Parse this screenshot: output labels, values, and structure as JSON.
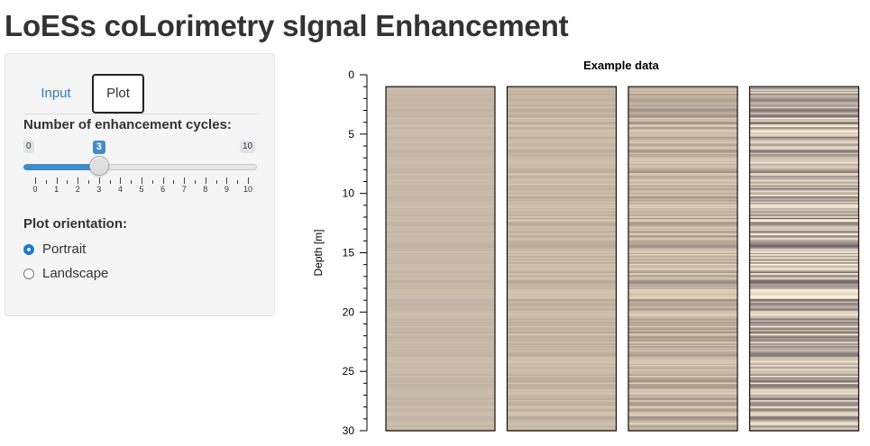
{
  "app": {
    "title": "LoESs coLorimetry sIgnal Enhancement"
  },
  "sidebar": {
    "tabs": [
      {
        "label": "Input"
      },
      {
        "label": "Plot"
      }
    ],
    "slider": {
      "label": "Number of enhancement cycles:",
      "min": 0,
      "max": 10,
      "value": 3,
      "min_label": "0",
      "max_label": "10",
      "value_label": "3",
      "tick_labels": [
        "0",
        "1",
        "2",
        "3",
        "4",
        "5",
        "6",
        "7",
        "8",
        "9",
        "10"
      ]
    },
    "orientation": {
      "label": "Plot orientation:",
      "options": [
        {
          "label": "Portrait",
          "selected": true
        },
        {
          "label": "Landscape",
          "selected": false
        }
      ]
    }
  },
  "chart_data": {
    "type": "heatmap",
    "title": "Example data",
    "ylabel": "Depth [m]",
    "xlabel": "",
    "ylim": [
      0,
      30
    ],
    "y_reversed": true,
    "yticks": [
      0,
      5,
      10,
      15,
      20,
      25,
      30
    ],
    "data_depth_range": [
      1,
      30
    ],
    "columns": [
      {
        "base_color": "#c7b8a8",
        "contrast": 0.05
      },
      {
        "base_color": "#c6b7a5",
        "contrast": 0.12
      },
      {
        "base_color": "#c2b3a1",
        "contrast": 0.28
      },
      {
        "base_color": "#bdb0a4",
        "contrast": 0.55
      }
    ]
  }
}
